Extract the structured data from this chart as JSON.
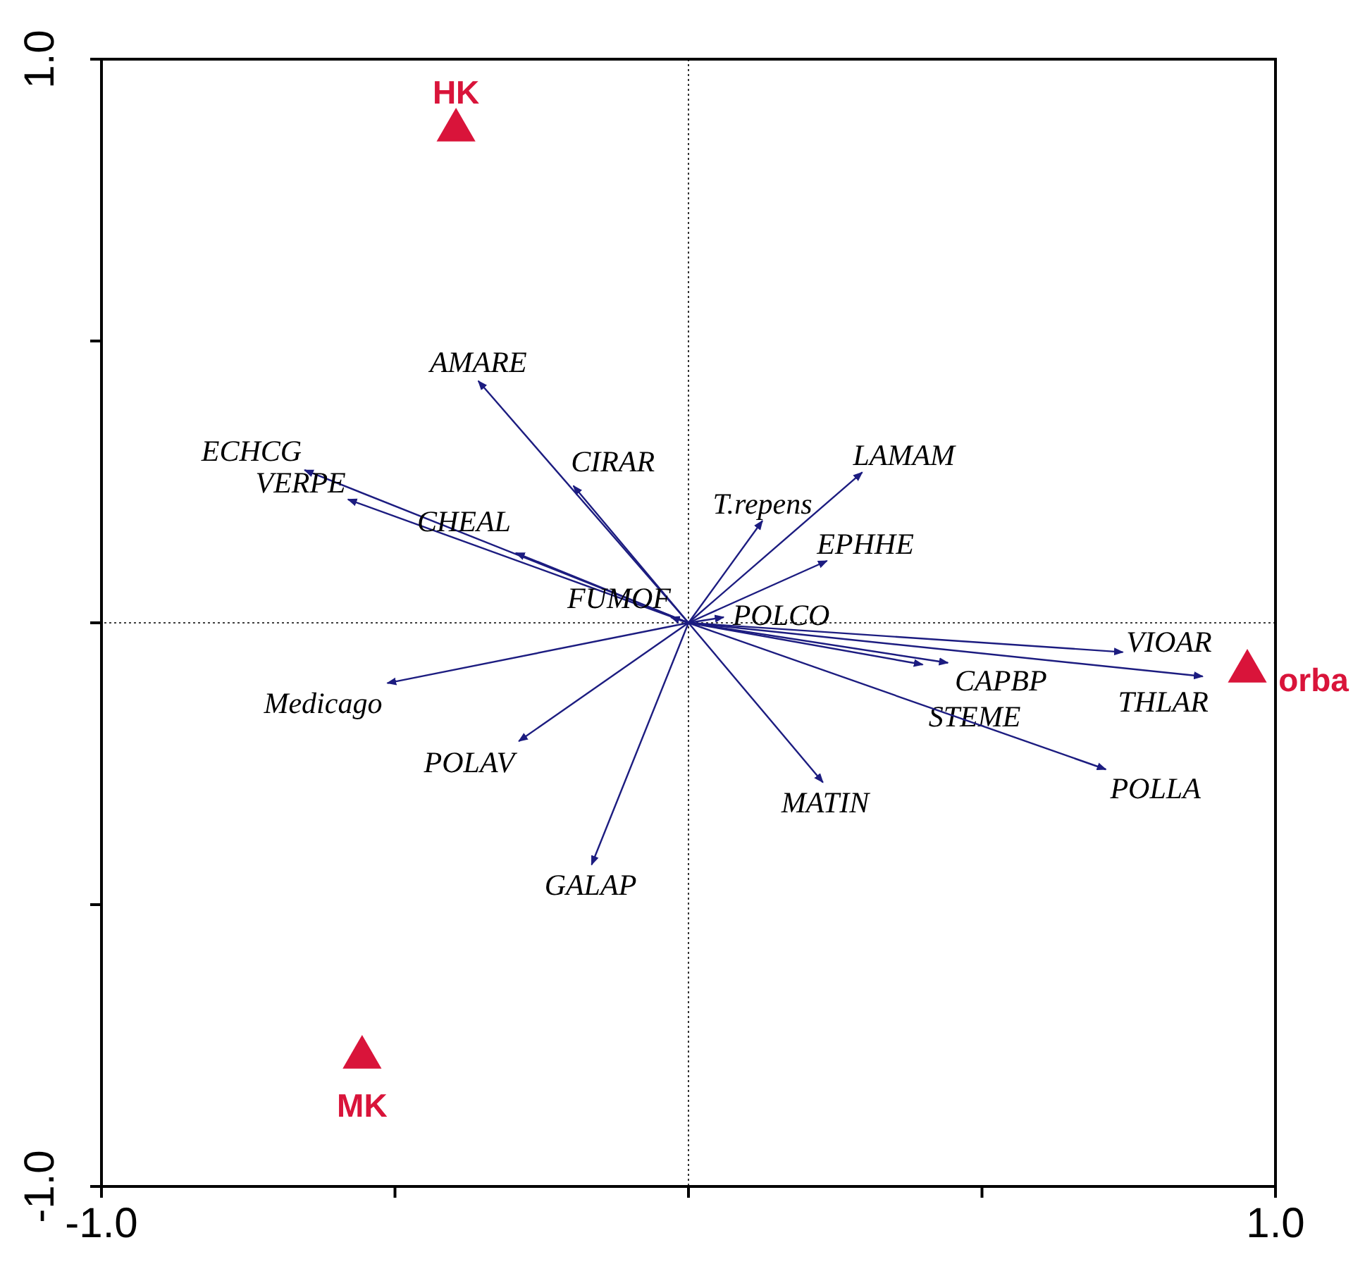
{
  "chart_data": {
    "type": "line",
    "xlim": [
      -1,
      1
    ],
    "ylim": [
      -1,
      1
    ],
    "xticks": [
      {
        "value": -1,
        "label": "-1.0"
      },
      {
        "value": -0.5,
        "label": null
      },
      {
        "value": 0,
        "label": null
      },
      {
        "value": 0.5,
        "label": null
      },
      {
        "value": 1,
        "label": "1.0"
      }
    ],
    "yticks": [
      {
        "value": -1,
        "label": "-1.0"
      },
      {
        "value": -0.5,
        "label": null
      },
      {
        "value": 0,
        "label": null
      },
      {
        "value": 0.5,
        "label": null
      },
      {
        "value": 1,
        "label": "1.0"
      }
    ],
    "grid": false,
    "ref_lines": [
      {
        "axis": "x",
        "value": 0,
        "line_style": "dotted",
        "color": "#000000"
      },
      {
        "axis": "y",
        "value": 0,
        "line_style": "dotted",
        "color": "#000000"
      }
    ],
    "series": [
      {
        "name": "AMARE",
        "color": "#1c1c80",
        "x": [
          0,
          -0.358
        ],
        "values": [
          0,
          0.429
        ],
        "marker": "none"
      },
      {
        "name": "ECHCG",
        "color": "#1c1c80",
        "x": [
          0,
          -0.654
        ],
        "values": [
          0,
          0.271
        ],
        "marker": "none"
      },
      {
        "name": "VERPE",
        "color": "#1c1c80",
        "x": [
          0,
          -0.58
        ],
        "values": [
          0,
          0.219
        ],
        "marker": "none"
      },
      {
        "name": "CIRAR",
        "color": "#1c1c80",
        "x": [
          0,
          -0.196
        ],
        "values": [
          0,
          0.243
        ],
        "marker": "none"
      },
      {
        "name": "CHEAL",
        "color": "#1c1c80",
        "x": [
          0,
          -0.294
        ],
        "values": [
          0,
          0.124
        ],
        "marker": "none"
      },
      {
        "name": "FUMOF",
        "color": "#1c1c80",
        "x": [
          0,
          -0.03
        ],
        "values": [
          0,
          0.01
        ],
        "marker": "none"
      },
      {
        "name": "POLCO",
        "color": "#1c1c80",
        "x": [
          0,
          0.06
        ],
        "values": [
          0,
          0.01
        ],
        "marker": "none"
      },
      {
        "name": "T.repens",
        "color": "#1c1c80",
        "x": [
          0,
          0.126
        ],
        "values": [
          0,
          0.181
        ],
        "marker": "none"
      },
      {
        "name": "LAMAM",
        "color": "#1c1c80",
        "x": [
          0,
          0.296
        ],
        "values": [
          0,
          0.267
        ],
        "marker": "none"
      },
      {
        "name": "EPHHE",
        "color": "#1c1c80",
        "x": [
          0,
          0.236
        ],
        "values": [
          0,
          0.11
        ],
        "marker": "none"
      },
      {
        "name": "VIOAR",
        "color": "#1c1c80",
        "x": [
          0,
          0.74
        ],
        "values": [
          0,
          -0.052
        ],
        "marker": "none"
      },
      {
        "name": "THLAR",
        "color": "#1c1c80",
        "x": [
          0,
          0.876
        ],
        "values": [
          0,
          -0.095
        ],
        "marker": "none"
      },
      {
        "name": "CAPBP",
        "color": "#1c1c80",
        "x": [
          0,
          0.442
        ],
        "values": [
          0,
          -0.071
        ],
        "marker": "none"
      },
      {
        "name": "STEME",
        "color": "#1c1c80",
        "x": [
          0,
          0.399
        ],
        "values": [
          0,
          -0.074
        ],
        "marker": "none"
      },
      {
        "name": "POLLA",
        "color": "#1c1c80",
        "x": [
          0,
          0.711
        ],
        "values": [
          0,
          -0.26
        ],
        "marker": "none"
      },
      {
        "name": "MATIN",
        "color": "#1c1c80",
        "x": [
          0,
          0.229
        ],
        "values": [
          0,
          -0.283
        ],
        "marker": "none"
      },
      {
        "name": "GALAP",
        "color": "#1c1c80",
        "x": [
          0,
          -0.165
        ],
        "values": [
          0,
          -0.429
        ],
        "marker": "none"
      },
      {
        "name": "POLAV",
        "color": "#1c1c80",
        "x": [
          0,
          -0.289
        ],
        "values": [
          0,
          -0.21
        ],
        "marker": "none"
      },
      {
        "name": "Medicago",
        "color": "#1c1c80",
        "x": [
          0,
          -0.513
        ],
        "values": [
          0,
          -0.107
        ],
        "marker": "none"
      },
      {
        "type": "scatter",
        "name": "HK",
        "color": "#d9143a",
        "x": [
          -0.396
        ],
        "values": [
          0.874
        ],
        "marker": "triangle"
      },
      {
        "type": "scatter",
        "name": "MK",
        "color": "#d9143a",
        "x": [
          -0.556
        ],
        "values": [
          -0.771
        ],
        "marker": "triangle"
      },
      {
        "type": "scatter",
        "name": "orba",
        "color": "#d9143a",
        "x": [
          0.952
        ],
        "values": [
          -0.086
        ],
        "marker": "triangle"
      }
    ]
  }
}
